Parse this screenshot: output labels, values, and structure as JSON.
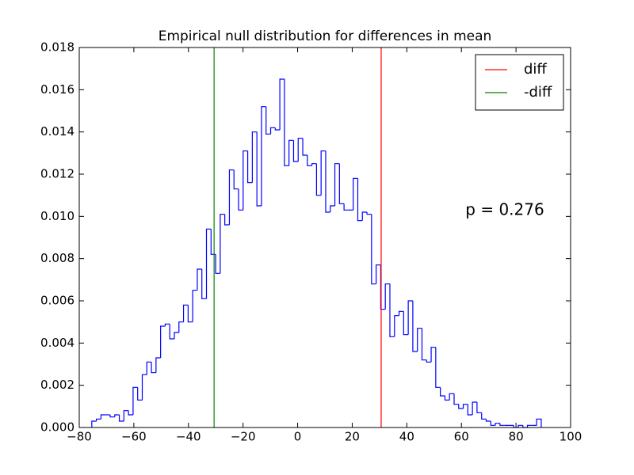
{
  "chart_data": {
    "type": "histogram-step",
    "title": "Empirical null distribution for differences in mean",
    "color": "#0000ff",
    "bins": [
      -75.4,
      -73.72,
      -72.04,
      -70.36,
      -68.68,
      -67.0,
      -65.32,
      -63.64,
      -61.96,
      -60.28,
      -58.6,
      -56.92,
      -55.24,
      -53.56,
      -51.88,
      -50.2,
      -48.52,
      -46.84,
      -45.16,
      -43.48,
      -41.8,
      -40.12,
      -38.44,
      -36.76,
      -35.08,
      -33.4,
      -31.72,
      -30.04,
      -28.36,
      -26.68,
      -25.0,
      -23.32,
      -21.64,
      -19.96,
      -18.28,
      -16.6,
      -14.92,
      -13.24,
      -11.56,
      -9.88,
      -8.2,
      -6.52,
      -4.84,
      -3.16,
      -1.48,
      0.2,
      1.88,
      3.56,
      5.24,
      6.92,
      8.6,
      10.28,
      11.96,
      13.64,
      15.32,
      17.0,
      18.68,
      20.36,
      22.04,
      23.72,
      25.4,
      27.08,
      28.76,
      30.44,
      32.12,
      33.8,
      35.48,
      37.16,
      38.84,
      40.52,
      42.2,
      43.88,
      45.56,
      47.24,
      48.92,
      50.6,
      52.28,
      53.96,
      55.64,
      57.32,
      59.0,
      60.68,
      62.36,
      64.04,
      65.72,
      67.4,
      69.08,
      70.76,
      72.44,
      74.12,
      75.8,
      77.48,
      79.16,
      80.84,
      82.52,
      84.2,
      85.88,
      87.56,
      89.24
    ],
    "values": [
      0.0003,
      0.0004,
      0.0006,
      0.0006,
      0.0005,
      0.0006,
      0.0003,
      0.0008,
      0.0006,
      0.0019,
      0.0013,
      0.0025,
      0.0031,
      0.0026,
      0.0033,
      0.0048,
      0.0049,
      0.0042,
      0.0045,
      0.005,
      0.0058,
      0.005,
      0.0065,
      0.0075,
      0.0061,
      0.0094,
      0.0082,
      0.0073,
      0.0101,
      0.0096,
      0.0122,
      0.0113,
      0.0103,
      0.0131,
      0.0116,
      0.014,
      0.0105,
      0.0152,
      0.0139,
      0.0142,
      0.0141,
      0.0165,
      0.0124,
      0.0136,
      0.0126,
      0.0137,
      0.0129,
      0.0124,
      0.0125,
      0.011,
      0.0131,
      0.0102,
      0.0105,
      0.0125,
      0.0106,
      0.0103,
      0.0103,
      0.0118,
      0.0098,
      0.0102,
      0.0101,
      0.0068,
      0.0077,
      0.0056,
      0.0068,
      0.0043,
      0.0053,
      0.0055,
      0.0044,
      0.006,
      0.0036,
      0.0047,
      0.0032,
      0.0031,
      0.0038,
      0.0019,
      0.0015,
      0.0013,
      0.0016,
      0.0011,
      0.0009,
      0.0011,
      0.0006,
      0.0012,
      0.0007,
      0.0004,
      0.0003,
      0.0001,
      0.0002,
      0.0001,
      0.0001,
      0.0001,
      0,
      0.0001,
      0,
      0.0001,
      0.0001,
      0.0004
    ],
    "vlines": [
      {
        "name": "diff",
        "color": "#ff0000",
        "x": 30.6
      },
      {
        "name": "-diff",
        "color": "#008000",
        "x": -30.6
      }
    ],
    "legend": "upper right",
    "annotation": "p = 0.276",
    "xlim": [
      -80,
      100
    ],
    "xticks": [
      {
        "value": -80,
        "label": "−80"
      },
      {
        "value": -60,
        "label": "−60"
      },
      {
        "value": -40,
        "label": "−40"
      },
      {
        "value": -20,
        "label": "−20"
      },
      0,
      20,
      40,
      60,
      80,
      100
    ],
    "ylim": [
      0,
      0.018
    ],
    "yticks": [
      {
        "value": 0,
        "label": "0.000"
      },
      {
        "value": 0.002,
        "label": "0.002"
      },
      {
        "value": 0.004,
        "label": "0.004"
      },
      {
        "value": 0.006,
        "label": "0.006"
      },
      {
        "value": 0.008,
        "label": "0.008"
      },
      {
        "value": 0.01,
        "label": "0.010"
      },
      {
        "value": 0.012,
        "label": "0.012"
      },
      {
        "value": 0.014,
        "label": "0.014"
      },
      {
        "value": 0.016,
        "label": "0.016"
      },
      {
        "value": 0.018,
        "label": "0.018"
      }
    ]
  }
}
